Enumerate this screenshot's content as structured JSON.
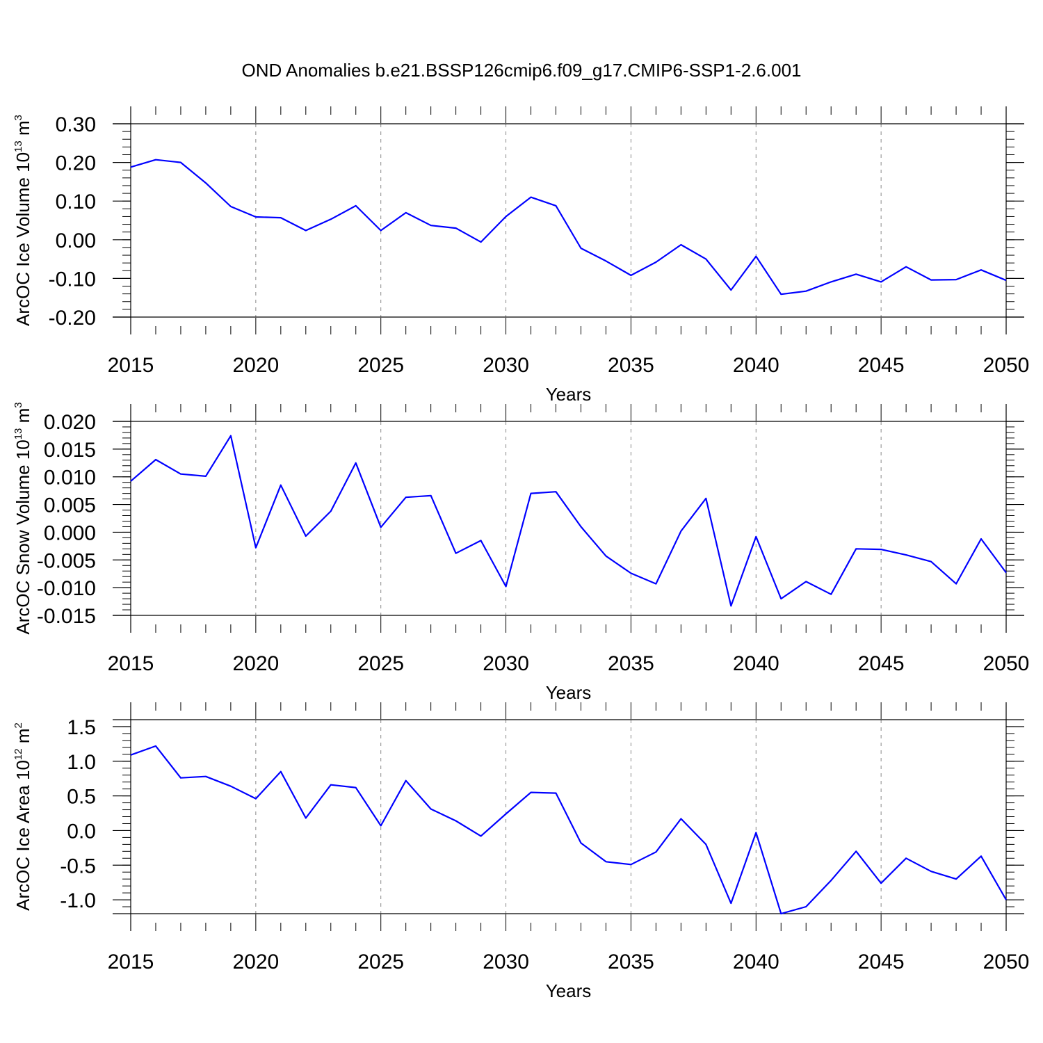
{
  "title": "OND Anomalies b.e21.BSSP126cmip6.f09_g17.CMIP6-SSP1-2.6.001",
  "colors": {
    "line": "#0000ff",
    "axis": "#000000",
    "grid": "#888888"
  },
  "chart_data": [
    {
      "type": "line",
      "ylabel": {
        "text": "ArcOC Ice Volume 10",
        "exp": "13",
        "unit": " m",
        "unit_exp": "3"
      },
      "xlabel": "Years",
      "xlim": [
        2015,
        2050
      ],
      "ylim": [
        -0.2,
        0.3
      ],
      "grid": "vertical dashed",
      "xticks": [
        2015,
        2020,
        2025,
        2030,
        2035,
        2040,
        2045,
        2050
      ],
      "xtick_labels": [
        "2015",
        "2020",
        "2025",
        "2030",
        "2035",
        "2040",
        "2045",
        "2050"
      ],
      "yticks": [
        -0.2,
        -0.1,
        0.0,
        0.1,
        0.2,
        0.3
      ],
      "ytick_labels": [
        "-0.20",
        "-0.10",
        "0.00",
        "0.10",
        "0.20",
        "0.30"
      ],
      "series": [
        {
          "name": "Ice Volume",
          "x": [
            2015,
            2016,
            2017,
            2018,
            2019,
            2020,
            2021,
            2022,
            2023,
            2024,
            2025,
            2026,
            2027,
            2028,
            2029,
            2030,
            2031,
            2032,
            2033,
            2034,
            2035,
            2036,
            2037,
            2038,
            2039,
            2040,
            2041,
            2042,
            2043,
            2044,
            2045,
            2046,
            2047,
            2048,
            2049,
            2050
          ],
          "values": [
            0.188,
            0.207,
            0.2,
            0.147,
            0.086,
            0.059,
            0.057,
            0.024,
            0.053,
            0.088,
            0.024,
            0.07,
            0.037,
            0.03,
            -0.006,
            0.06,
            0.11,
            0.088,
            -0.022,
            -0.055,
            -0.092,
            -0.058,
            -0.013,
            -0.05,
            -0.13,
            -0.043,
            -0.141,
            -0.133,
            -0.109,
            -0.089,
            -0.109,
            -0.07,
            -0.104,
            -0.103,
            -0.078,
            -0.105
          ]
        }
      ]
    },
    {
      "type": "line",
      "ylabel": {
        "text": "ArcOC Snow Volume 10",
        "exp": "13",
        "unit": " m",
        "unit_exp": "3"
      },
      "xlabel": "Years",
      "xlim": [
        2015,
        2050
      ],
      "ylim": [
        -0.015,
        0.02
      ],
      "grid": "vertical dashed",
      "xticks": [
        2015,
        2020,
        2025,
        2030,
        2035,
        2040,
        2045,
        2050
      ],
      "xtick_labels": [
        "2015",
        "2020",
        "2025",
        "2030",
        "2035",
        "2040",
        "2045",
        "2050"
      ],
      "yticks": [
        -0.015,
        -0.01,
        -0.005,
        0.0,
        0.005,
        0.01,
        0.015,
        0.02
      ],
      "ytick_labels": [
        "-0.015",
        "-0.010",
        "-0.005",
        "0.000",
        "0.005",
        "0.010",
        "0.015",
        "0.020"
      ],
      "series": [
        {
          "name": "Snow Volume",
          "x": [
            2015,
            2016,
            2017,
            2018,
            2019,
            2020,
            2021,
            2022,
            2023,
            2024,
            2025,
            2026,
            2027,
            2028,
            2029,
            2030,
            2031,
            2032,
            2033,
            2034,
            2035,
            2036,
            2037,
            2038,
            2039,
            2040,
            2041,
            2042,
            2043,
            2044,
            2045,
            2046,
            2047,
            2048,
            2049,
            2050
          ],
          "values": [
            0.0092,
            0.0131,
            0.0105,
            0.0101,
            0.0174,
            -0.0028,
            0.0085,
            -0.0007,
            0.0038,
            0.0125,
            0.0009,
            0.0063,
            0.0066,
            -0.0038,
            -0.0015,
            -0.0098,
            0.007,
            0.0073,
            0.001,
            -0.0043,
            -0.0074,
            -0.0093,
            0.0002,
            0.0061,
            -0.0133,
            -0.0008,
            -0.012,
            -0.0089,
            -0.0112,
            -0.003,
            -0.0031,
            -0.0041,
            -0.0053,
            -0.0093,
            -0.0012,
            -0.0073
          ]
        }
      ]
    },
    {
      "type": "line",
      "ylabel": {
        "text": "ArcOC Ice Area 10",
        "exp": "12",
        "unit": " m",
        "unit_exp": "2"
      },
      "xlabel": "Years",
      "xlim": [
        2015,
        2050
      ],
      "ylim": [
        -1.2,
        1.6
      ],
      "grid": "vertical dashed",
      "xticks": [
        2015,
        2020,
        2025,
        2030,
        2035,
        2040,
        2045,
        2050
      ],
      "xtick_labels": [
        "2015",
        "2020",
        "2025",
        "2030",
        "2035",
        "2040",
        "2045",
        "2050"
      ],
      "yticks": [
        -1.0,
        -0.5,
        0.0,
        0.5,
        1.0,
        1.5
      ],
      "ytick_labels": [
        "-1.0",
        "-0.5",
        "0.0",
        "0.5",
        "1.0",
        "1.5"
      ],
      "series": [
        {
          "name": "Ice Area",
          "x": [
            2015,
            2016,
            2017,
            2018,
            2019,
            2020,
            2021,
            2022,
            2023,
            2024,
            2025,
            2026,
            2027,
            2028,
            2029,
            2030,
            2031,
            2032,
            2033,
            2034,
            2035,
            2036,
            2037,
            2038,
            2039,
            2040,
            2041,
            2042,
            2043,
            2044,
            2045,
            2046,
            2047,
            2048,
            2049,
            2050
          ],
          "values": [
            1.09,
            1.22,
            0.76,
            0.78,
            0.64,
            0.46,
            0.85,
            0.18,
            0.66,
            0.62,
            0.07,
            0.72,
            0.31,
            0.14,
            -0.08,
            0.24,
            0.55,
            0.54,
            -0.18,
            -0.45,
            -0.49,
            -0.31,
            0.17,
            -0.2,
            -1.05,
            -0.03,
            -1.2,
            -1.1,
            -0.72,
            -0.3,
            -0.76,
            -0.4,
            -0.59,
            -0.7,
            -0.37,
            -1.0
          ]
        }
      ]
    }
  ]
}
